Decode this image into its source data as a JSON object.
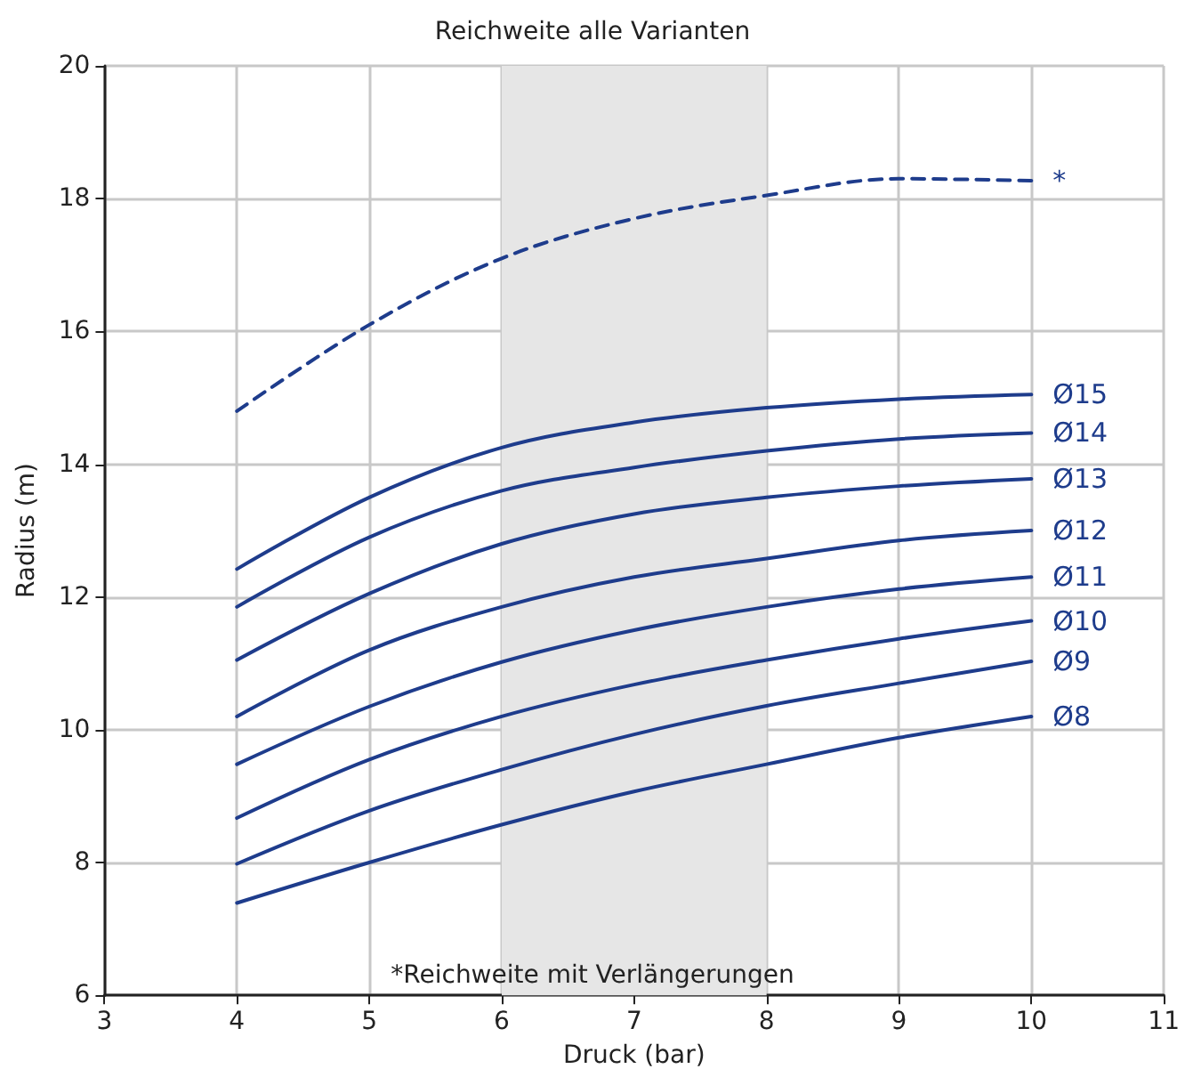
{
  "chart_data": {
    "type": "line",
    "title": "Reichweite alle Varianten",
    "xlabel": "Druck (bar)",
    "ylabel": "Radius (m)",
    "x": [
      4,
      5,
      6,
      7,
      8,
      9,
      10
    ],
    "xlim": [
      3,
      11
    ],
    "xticks": [
      3,
      4,
      5,
      6,
      7,
      8,
      9,
      10,
      11
    ],
    "ylim": [
      6,
      20
    ],
    "yticks": [
      6,
      8,
      10,
      12,
      14,
      16,
      18,
      20
    ],
    "grid": true,
    "marker": "none",
    "line_style": "solid",
    "bands": [
      {
        "axis": "x",
        "from": 6,
        "to": 8,
        "color": "#e6e6e6"
      }
    ],
    "annotations": [
      "*Reichweite mit Verlängerungen"
    ],
    "series": [
      {
        "name": "*",
        "color": "#1e3c8c",
        "line_style": "dashed",
        "values": [
          14.8,
          16.1,
          17.1,
          17.7,
          18.05,
          18.3,
          18.27
        ]
      },
      {
        "name": "Ø15",
        "color": "#1e3c8c",
        "values": [
          12.42,
          13.5,
          14.25,
          14.63,
          14.85,
          14.98,
          15.05
        ]
      },
      {
        "name": "Ø14",
        "color": "#1e3c8c",
        "values": [
          11.85,
          12.9,
          13.6,
          13.95,
          14.2,
          14.38,
          14.47
        ]
      },
      {
        "name": "Ø13",
        "color": "#1e3c8c",
        "values": [
          11.05,
          12.05,
          12.8,
          13.25,
          13.5,
          13.67,
          13.78
        ]
      },
      {
        "name": "Ø12",
        "color": "#1e3c8c",
        "values": [
          10.2,
          11.2,
          11.85,
          12.3,
          12.58,
          12.85,
          13.0
        ]
      },
      {
        "name": "Ø11",
        "color": "#1e3c8c",
        "values": [
          9.48,
          10.35,
          11.02,
          11.5,
          11.85,
          12.12,
          12.3
        ]
      },
      {
        "name": "Ø10",
        "color": "#1e3c8c",
        "values": [
          8.67,
          9.55,
          10.2,
          10.68,
          11.05,
          11.37,
          11.64
        ]
      },
      {
        "name": "Ø9",
        "color": "#1e3c8c",
        "values": [
          7.98,
          8.78,
          9.4,
          9.93,
          10.36,
          10.7,
          11.03
        ]
      },
      {
        "name": "Ø8",
        "color": "#1e3c8c",
        "values": [
          7.39,
          8.0,
          8.57,
          9.07,
          9.48,
          9.88,
          10.2
        ]
      }
    ]
  }
}
